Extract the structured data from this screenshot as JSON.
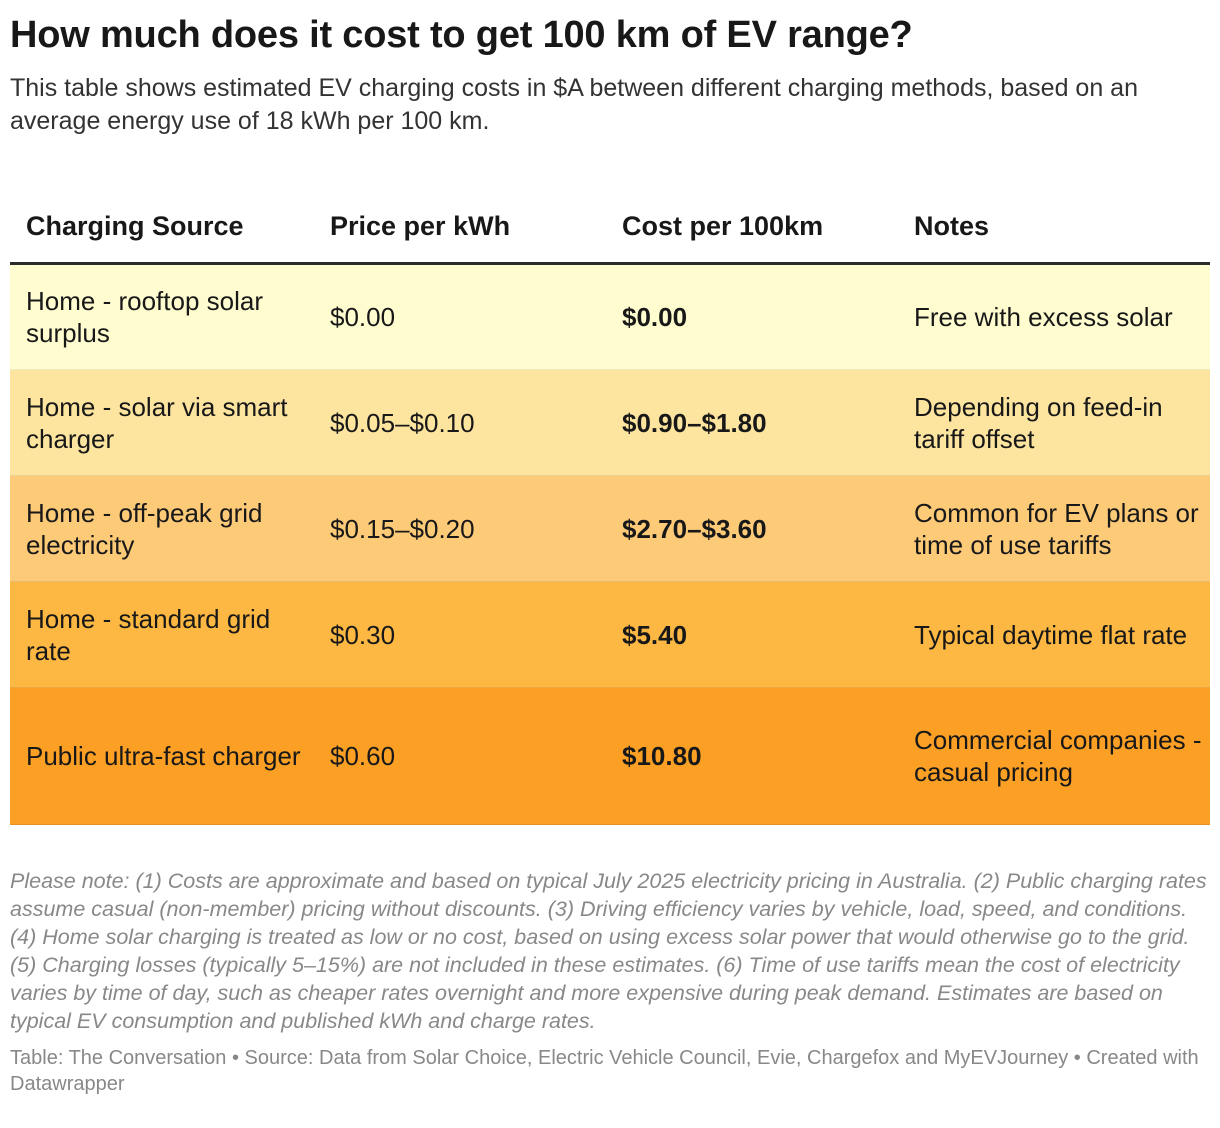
{
  "title": "How much does it cost to get 100 km of EV range?",
  "subtitle": "This table shows estimated EV charging costs in $A between different charging methods, based on an average energy use of 18 kWh per 100 km.",
  "table": {
    "headers": [
      "Charging Source",
      "Price per kWh",
      "Cost per 100km",
      "Notes"
    ],
    "rows": [
      {
        "source": "Home - rooftop solar surplus",
        "price": "$0.00",
        "cost": "$0.00",
        "notes": "Free with excess solar",
        "color": "#FFFDD0"
      },
      {
        "source": "Home - solar via smart charger",
        "price": "$0.05–$0.10",
        "cost": "$0.90–$1.80",
        "notes": "Depending on feed-in tariff offset",
        "color": "#FDE5A0"
      },
      {
        "source": "Home - off-peak grid electricity",
        "price": "$0.15–$0.20",
        "cost": "$2.70–$3.60",
        "notes": "Common for EV plans or time of use tariffs",
        "color": "#FDCA78"
      },
      {
        "source": "Home - standard grid rate",
        "price": "$0.30",
        "cost": "$5.40",
        "notes": "Typical daytime flat rate",
        "color": "#FDB843"
      },
      {
        "source": "Public ultra-fast charger",
        "price": "$0.60",
        "cost": "$10.80",
        "notes": "Commercial companies - casual pricing",
        "color": "#FC9F25"
      }
    ]
  },
  "footnote": "Please note: (1) Costs are approximate and based on typical July 2025 electricity pricing in Australia. (2) Public charging rates assume casual (non-member) pricing without discounts. (3) Driving efficiency varies by vehicle, load, speed, and conditions. (4) Home solar charging is treated as low or no cost, based on using excess solar power that would otherwise go to the grid. (5) Charging losses (typically 5–15%) are not included in these estimates. (6) Time of use tariffs mean the cost of electricity varies by time of day, such as cheaper rates overnight and more expensive during peak demand. Estimates are based on typical EV consumption and published kWh and charge rates.",
  "credit": "Table: The Conversation • Source: Data from Solar Choice, Electric Vehicle Council, Evie, Chargefox and MyEVJourney • Created with Datawrapper"
}
